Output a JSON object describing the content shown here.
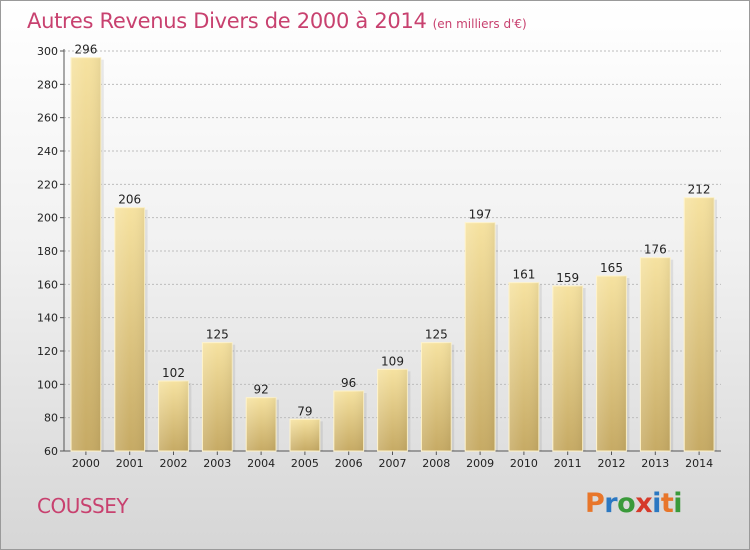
{
  "header": {
    "title": "Autres Revenus Divers de 2000 à 2014",
    "unit_note": "(en milliers d'€)"
  },
  "commune_name": "COUSSEY",
  "logo": {
    "letters": [
      "P",
      "r",
      "o",
      "x",
      "i",
      "t",
      "i"
    ],
    "colors": [
      "#e8762a",
      "#2b78c2",
      "#3a9a3a",
      "#d63a2a",
      "#2b78c2",
      "#e8762a",
      "#3a9a3a"
    ]
  },
  "colors": {
    "accent": "#c8416f",
    "bar_light": "#f6e2a0",
    "bar_dark": "#c6aa64"
  },
  "chart_data": {
    "type": "bar",
    "title": "Autres Revenus Divers de 2000 à 2014",
    "categories": [
      "2000",
      "2001",
      "2002",
      "2003",
      "2004",
      "2005",
      "2006",
      "2007",
      "2008",
      "2009",
      "2010",
      "2011",
      "2012",
      "2013",
      "2014"
    ],
    "values": [
      296,
      206,
      102,
      125,
      92,
      79,
      96,
      109,
      125,
      197,
      161,
      159,
      165,
      176,
      212
    ],
    "ylim": [
      60,
      300
    ],
    "yticks": [
      60,
      80,
      100,
      120,
      140,
      160,
      180,
      200,
      220,
      240,
      260,
      280,
      300
    ],
    "grid": true,
    "data_labels": true
  }
}
